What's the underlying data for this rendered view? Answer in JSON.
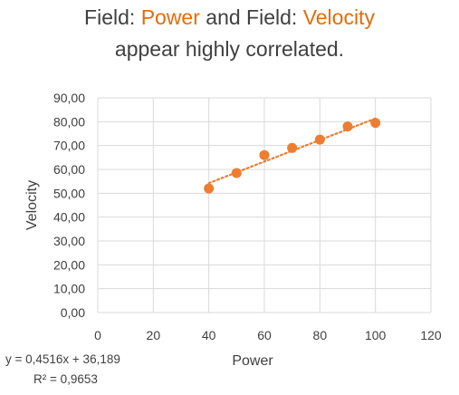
{
  "title": {
    "line1_parts": [
      {
        "text": "Field: ",
        "highlight": false
      },
      {
        "text": "Power",
        "highlight": true
      },
      {
        "text": " and Field: ",
        "highlight": false
      },
      {
        "text": "Velocity",
        "highlight": true
      }
    ],
    "line2": "appear highly correlated."
  },
  "colors": {
    "accent": "#e46c0a",
    "marker": "#ed7d31",
    "text": "#404040",
    "grid": "#d9d9d9"
  },
  "chart_data": {
    "type": "scatter",
    "xlabel": "Power",
    "ylabel": "Velocity",
    "xlim": [
      0,
      120
    ],
    "ylim": [
      0,
      90
    ],
    "x_ticks": [
      "0",
      "20",
      "40",
      "60",
      "80",
      "100",
      "120"
    ],
    "y_ticks": [
      "0,00",
      "10,00",
      "20,00",
      "30,00",
      "40,00",
      "50,00",
      "60,00",
      "70,00",
      "80,00",
      "90,00"
    ],
    "grid": true,
    "points": [
      {
        "x": 40,
        "y": 52
      },
      {
        "x": 50,
        "y": 58.5
      },
      {
        "x": 60,
        "y": 66
      },
      {
        "x": 70,
        "y": 69
      },
      {
        "x": 80,
        "y": 72.5
      },
      {
        "x": 90,
        "y": 78
      },
      {
        "x": 100,
        "y": 79.5
      }
    ],
    "trendline": {
      "type": "linear",
      "slope": 0.4516,
      "intercept": 36.189,
      "style": "dotted",
      "equation": "y = 0,4516x + 36,189",
      "r2": "R² = 0,9653"
    }
  }
}
